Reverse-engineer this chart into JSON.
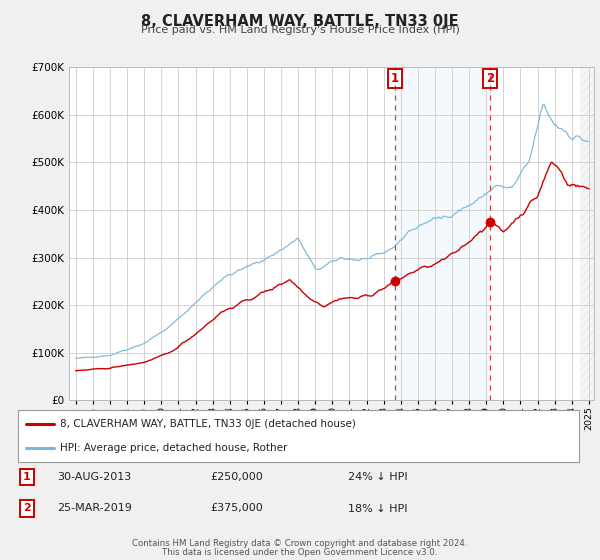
{
  "title": "8, CLAVERHAM WAY, BATTLE, TN33 0JE",
  "subtitle": "Price paid vs. HM Land Registry's House Price Index (HPI)",
  "legend_line1": "8, CLAVERHAM WAY, BATTLE, TN33 0JE (detached house)",
  "legend_line2": "HPI: Average price, detached house, Rother",
  "table_row1": [
    "1",
    "30-AUG-2013",
    "£250,000",
    "24% ↓ HPI"
  ],
  "table_row2": [
    "2",
    "25-MAR-2019",
    "£375,000",
    "18% ↓ HPI"
  ],
  "footnote1": "Contains HM Land Registry data © Crown copyright and database right 2024.",
  "footnote2": "This data is licensed under the Open Government Licence v3.0.",
  "hpi_color": "#7ab8d9",
  "price_color": "#cc0000",
  "bg_color": "#f0f0f0",
  "plot_bg": "#ffffff",
  "grid_color": "#cccccc",
  "marker1_date": 2013.66,
  "marker1_price": 250000,
  "marker2_date": 2019.23,
  "marker2_price": 375000,
  "shade_x1": 2013.66,
  "shade_x2": 2019.23,
  "ylim": [
    0,
    700000
  ],
  "xlim_start": 1994.6,
  "xlim_end": 2025.3,
  "seed": 42
}
